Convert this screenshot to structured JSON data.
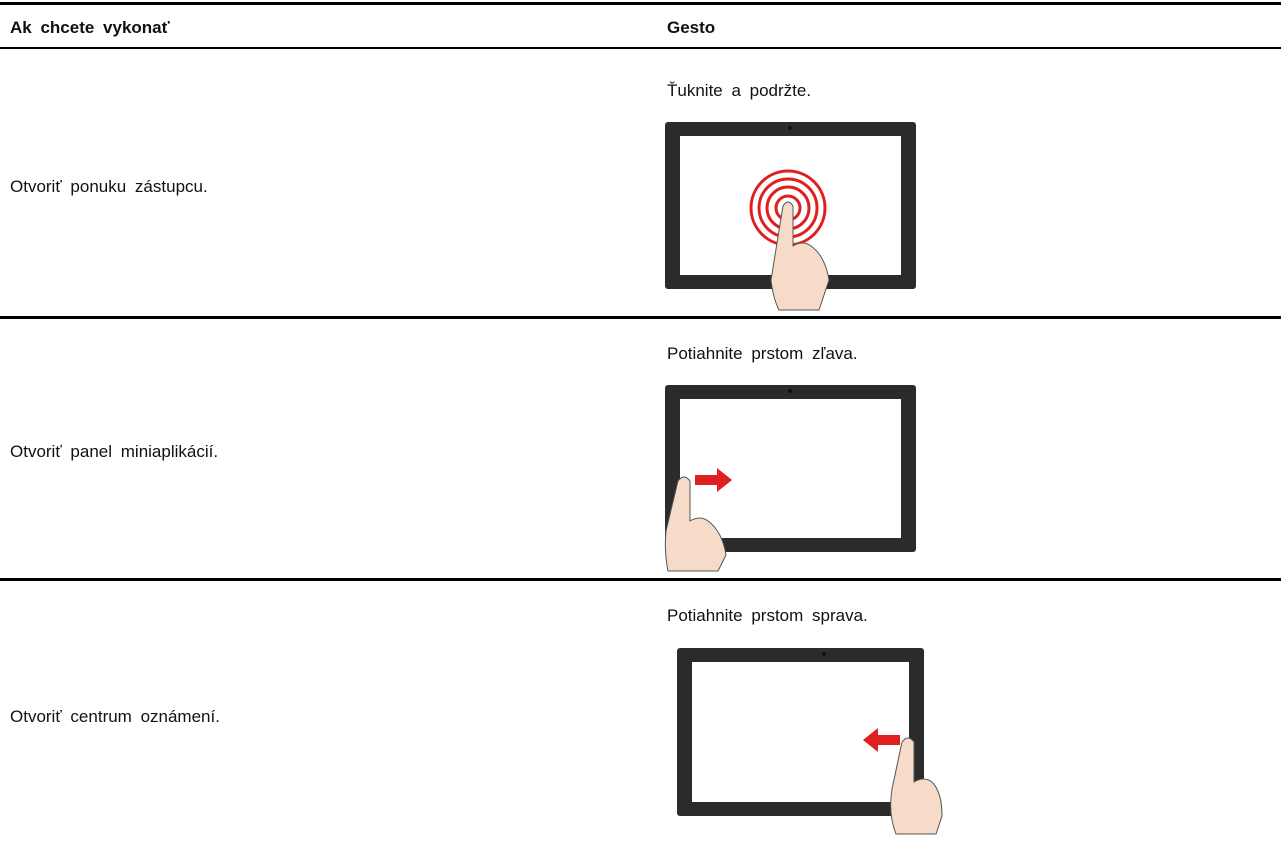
{
  "table": {
    "header": [
      "Ak chcete vykonať",
      "Gesto"
    ],
    "rows": [
      [
        "Otvoriť ponuku zástupcu.",
        "Ťuknite a podržte."
      ],
      [
        "Otvoriť panel miniaplikácií.",
        "Potiahnite prstom zľava."
      ],
      [
        "Otvoriť centrum oznámení.",
        "Potiahnite prstom sprava."
      ]
    ]
  }
}
